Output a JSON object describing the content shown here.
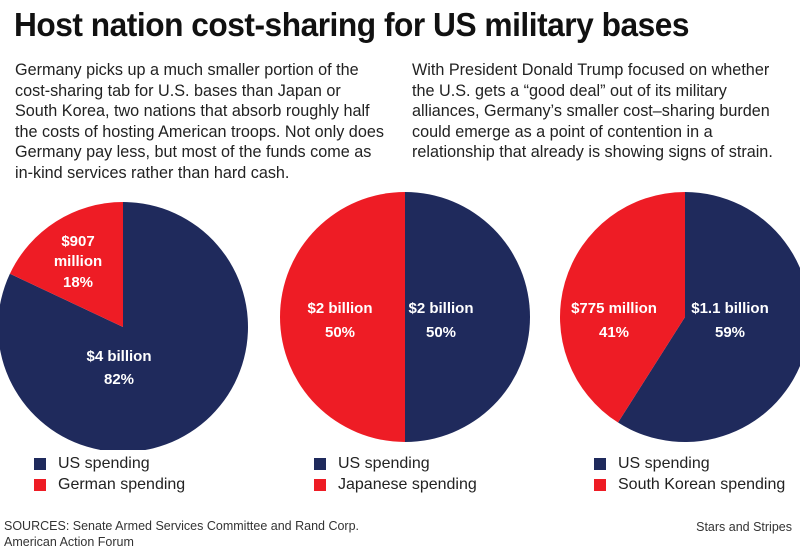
{
  "title": "Host nation cost-sharing for US military bases",
  "intro_left": "Germany picks up a much smaller portion of the cost-sharing tab for U.S. bases than Japan or South Korea, two nations that absorb roughly half the costs of hosting American troops. Not only does Germany pay less, but most of the funds come as in-kind services rather than hard cash.",
  "intro_right": "With President Donald Trump focused on whether the U.S. gets a “good deal” out of its military alliances, Germany’s smaller cost–sharing burden could emerge as a point of contention in a relationship that already is showing signs of strain.",
  "colors": {
    "us": "#1f2a5c",
    "host": "#ee1c25"
  },
  "chart_data": [
    {
      "type": "pie",
      "slices": [
        {
          "name": "US spending",
          "value": 82,
          "amount": "$4 billion",
          "percent": "82%"
        },
        {
          "name": "German spending",
          "value": 18,
          "amount": "$907 million",
          "percent": "18%"
        }
      ],
      "legend": [
        "US spending",
        "German spending"
      ]
    },
    {
      "type": "pie",
      "slices": [
        {
          "name": "US spending",
          "value": 50,
          "amount": "$2 billion",
          "percent": "50%"
        },
        {
          "name": "Japanese spending",
          "value": 50,
          "amount": "$2 billion",
          "percent": "50%"
        }
      ],
      "legend": [
        "US spending",
        "Japanese spending"
      ]
    },
    {
      "type": "pie",
      "slices": [
        {
          "name": "US spending",
          "value": 59,
          "amount": "$1.1 billion",
          "percent": "59%"
        },
        {
          "name": "South Korean spending",
          "value": 41,
          "amount": "$775 million",
          "percent": "41%"
        }
      ],
      "legend": [
        "US spending",
        "South Korean spending"
      ]
    }
  ],
  "sources_line1": "SOURCES: Senate Armed Services Committee and Rand Corp.",
  "sources_line2": "American Action Forum",
  "credit": "Stars and Stripes"
}
